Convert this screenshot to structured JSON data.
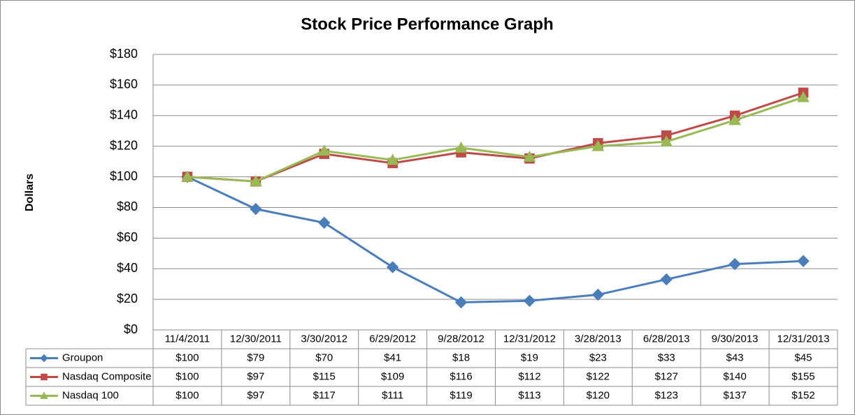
{
  "chart_data": {
    "type": "line",
    "title": "Stock Price Performance Graph",
    "y_label": "Dollars",
    "categories": [
      "11/4/2011",
      "12/30/2011",
      "3/30/2012",
      "6/29/2012",
      "9/28/2012",
      "12/31/2012",
      "3/28/2013",
      "6/28/2013",
      "9/30/2013",
      "12/31/2013"
    ],
    "series": [
      {
        "name": "Groupon",
        "color": "#4a7ebb",
        "marker": "diamond",
        "values": [
          100,
          79,
          70,
          41,
          18,
          19,
          23,
          33,
          43,
          45
        ],
        "value_labels": [
          "$100",
          "$79",
          "$70",
          "$41",
          "$18",
          "$19",
          "$23",
          "$33",
          "$43",
          "$45"
        ]
      },
      {
        "name": "Nasdaq Composite",
        "color": "#be4b48",
        "marker": "square",
        "values": [
          100,
          97,
          115,
          109,
          116,
          112,
          122,
          127,
          140,
          155
        ],
        "value_labels": [
          "$100",
          "$97",
          "$115",
          "$109",
          "$116",
          "$112",
          "$122",
          "$127",
          "$140",
          "$155"
        ]
      },
      {
        "name": "Nasdaq 100",
        "color": "#98b954",
        "marker": "triangle",
        "values": [
          100,
          97,
          117,
          111,
          119,
          113,
          120,
          123,
          137,
          152
        ],
        "value_labels": [
          "$100",
          "$97",
          "$117",
          "$111",
          "$119",
          "$113",
          "$120",
          "$123",
          "$137",
          "$152"
        ]
      }
    ],
    "ylim": [
      0,
      180
    ],
    "yticks": [
      {
        "value": 0,
        "label": "$0"
      },
      {
        "value": 20,
        "label": "$20"
      },
      {
        "value": 40,
        "label": "$40"
      },
      {
        "value": 60,
        "label": "$60"
      },
      {
        "value": 80,
        "label": "$80"
      },
      {
        "value": 100,
        "label": "$100"
      },
      {
        "value": 120,
        "label": "$120"
      },
      {
        "value": 140,
        "label": "$140"
      },
      {
        "value": 160,
        "label": "$160"
      },
      {
        "value": 180,
        "label": "$180"
      }
    ],
    "grid": true,
    "data_table": true
  }
}
